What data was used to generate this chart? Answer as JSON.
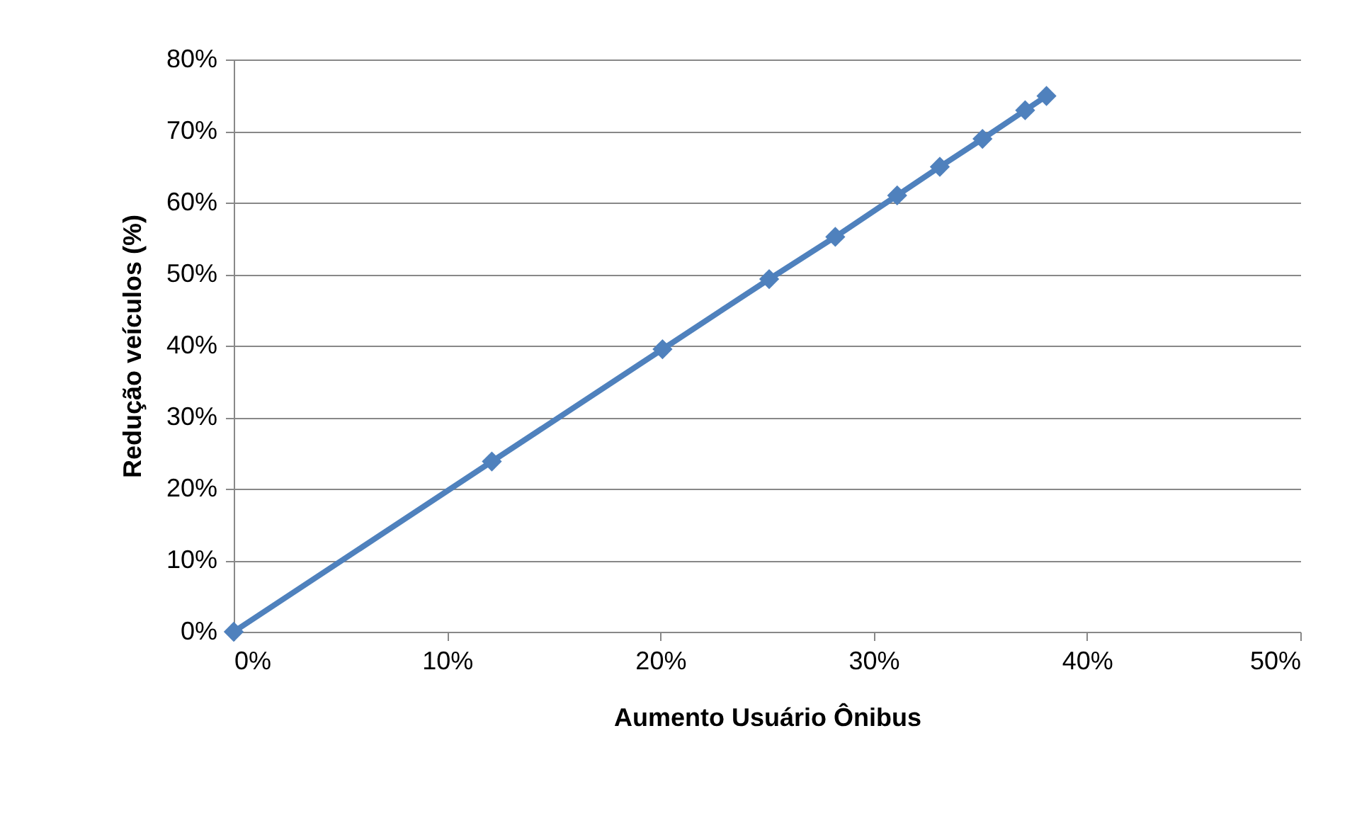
{
  "chart_data": {
    "type": "line",
    "xlabel": "Aumento Usuário Ônibus",
    "ylabel": "Redução veículos (%)",
    "x": [
      0,
      12.1,
      20.1,
      25.1,
      28.2,
      31.1,
      33.1,
      35.1,
      37.1,
      38.1
    ],
    "series": [
      {
        "color": "#4f81bd",
        "values": [
          0,
          23.8,
          39.5,
          49.3,
          55.2,
          61.0,
          65.0,
          68.9,
          72.9,
          74.9
        ]
      }
    ],
    "xlim": [
      0,
      50
    ],
    "ylim": [
      0,
      80
    ],
    "xticks": [
      {
        "value": 0,
        "label": "0%"
      },
      {
        "value": 10,
        "label": "10%"
      },
      {
        "value": 20,
        "label": "20%"
      },
      {
        "value": 30,
        "label": "30%"
      },
      {
        "value": 40,
        "label": "40%"
      },
      {
        "value": 50,
        "label": "50%"
      }
    ],
    "yticks": [
      {
        "value": 0,
        "label": "0%"
      },
      {
        "value": 10,
        "label": "10%"
      },
      {
        "value": 20,
        "label": "20%"
      },
      {
        "value": 30,
        "label": "30%"
      },
      {
        "value": 40,
        "label": "40%"
      },
      {
        "value": 50,
        "label": "50%"
      },
      {
        "value": 60,
        "label": "60%"
      },
      {
        "value": 70,
        "label": "70%"
      },
      {
        "value": 80,
        "label": "80%"
      }
    ],
    "grid": "y",
    "marker": "diamond",
    "line_style": "solid"
  }
}
